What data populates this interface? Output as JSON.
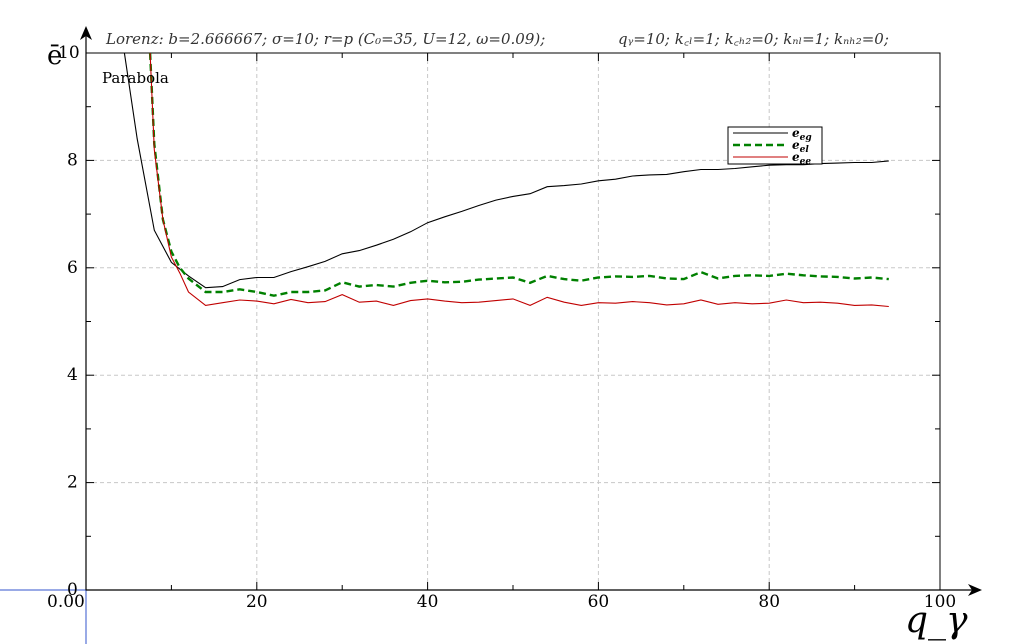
{
  "header": {
    "lorenz": "Lorenz: b=2.666667; σ=10; r=p (C₀=35, U=12, ω=0.09);",
    "params": "qᵧ=10; k꜀ₗ=1; k꜀ₕ₂=0; kₙₗ=1; kₙₕ₂=0;"
  },
  "model_label": "Parabola",
  "origin_label": "0.00",
  "colors": {
    "e_eg": "#000000",
    "e_el": "#008000",
    "e_ee": "#c00000",
    "grid": "#c8c8c8",
    "crosshair": "#3355cc"
  },
  "chart_data": {
    "type": "line",
    "xlabel": "q_γ",
    "ylabel": "ē",
    "xlim": [
      0,
      100
    ],
    "ylim": [
      0,
      10
    ],
    "xticks": [
      20,
      40,
      60,
      80,
      100
    ],
    "yticks": [
      0,
      2,
      4,
      6,
      8,
      10
    ],
    "grid": true,
    "legend_position": "upper-right",
    "series": [
      {
        "name": "e_eg",
        "style": "solid",
        "x": [
          4.5,
          6,
          8,
          10,
          12,
          14,
          16,
          18,
          20,
          22,
          24,
          26,
          28,
          30,
          32,
          34,
          36,
          38,
          40,
          42,
          44,
          46,
          48,
          50,
          52,
          54,
          56,
          58,
          60,
          62,
          64,
          66,
          68,
          70,
          72,
          74,
          76,
          78,
          80,
          82,
          84,
          86,
          88,
          90,
          92,
          94
        ],
        "y": [
          10,
          8.4,
          6.7,
          6.1,
          5.85,
          5.63,
          5.65,
          5.78,
          5.82,
          5.82,
          5.93,
          6.02,
          6.12,
          6.26,
          6.32,
          6.42,
          6.53,
          6.67,
          6.84,
          6.95,
          7.05,
          7.16,
          7.26,
          7.33,
          7.38,
          7.51,
          7.53,
          7.56,
          7.62,
          7.65,
          7.71,
          7.73,
          7.74,
          7.79,
          7.83,
          7.83,
          7.85,
          7.88,
          7.91,
          7.92,
          7.92,
          7.94,
          7.95,
          7.96,
          7.96,
          7.99
        ]
      },
      {
        "name": "e_el",
        "style": "dashed",
        "x": [
          7.5,
          8,
          9,
          10,
          11,
          12,
          14,
          16,
          18,
          20,
          22,
          24,
          26,
          28,
          30,
          32,
          34,
          36,
          38,
          40,
          42,
          44,
          46,
          48,
          50,
          52,
          54,
          56,
          58,
          60,
          62,
          64,
          66,
          68,
          70,
          72,
          74,
          76,
          78,
          80,
          82,
          84,
          86,
          88,
          90,
          92,
          94
        ],
        "y": [
          10,
          8.3,
          6.9,
          6.3,
          6.0,
          5.8,
          5.55,
          5.55,
          5.6,
          5.55,
          5.48,
          5.55,
          5.55,
          5.58,
          5.73,
          5.65,
          5.68,
          5.65,
          5.72,
          5.76,
          5.73,
          5.74,
          5.78,
          5.8,
          5.82,
          5.72,
          5.85,
          5.79,
          5.76,
          5.82,
          5.84,
          5.83,
          5.85,
          5.8,
          5.79,
          5.92,
          5.8,
          5.85,
          5.86,
          5.85,
          5.89,
          5.86,
          5.84,
          5.83,
          5.8,
          5.82,
          5.79
        ]
      },
      {
        "name": "e_ee",
        "style": "solid",
        "x": [
          7.5,
          8,
          9,
          10,
          11,
          12,
          14,
          16,
          18,
          20,
          22,
          24,
          26,
          28,
          30,
          32,
          34,
          36,
          38,
          40,
          42,
          44,
          46,
          48,
          50,
          52,
          54,
          56,
          58,
          60,
          62,
          64,
          66,
          68,
          70,
          72,
          74,
          76,
          78,
          80,
          82,
          84,
          86,
          88,
          90,
          92,
          94
        ],
        "y": [
          10,
          8.2,
          6.9,
          6.2,
          5.9,
          5.55,
          5.3,
          5.35,
          5.4,
          5.38,
          5.33,
          5.41,
          5.35,
          5.37,
          5.5,
          5.36,
          5.38,
          5.3,
          5.39,
          5.42,
          5.38,
          5.35,
          5.36,
          5.39,
          5.42,
          5.3,
          5.45,
          5.36,
          5.3,
          5.35,
          5.34,
          5.37,
          5.35,
          5.31,
          5.33,
          5.4,
          5.32,
          5.35,
          5.33,
          5.34,
          5.4,
          5.35,
          5.36,
          5.34,
          5.3,
          5.31,
          5.28
        ]
      }
    ]
  }
}
